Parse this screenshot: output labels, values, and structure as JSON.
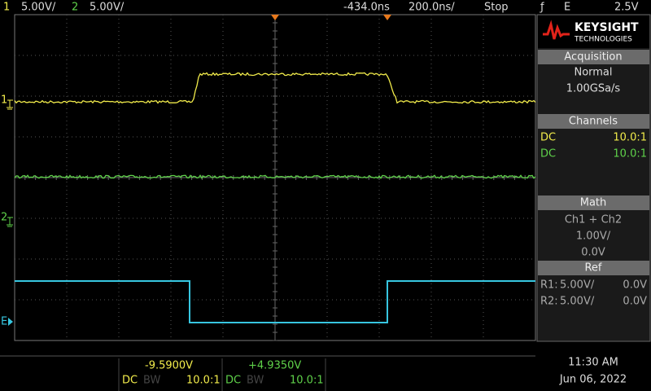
{
  "top_bar": {
    "ch1_label": "1",
    "ch1_scale": "5.00V/",
    "ch2_label": "2",
    "ch2_scale": "5.00V/",
    "delay": "-434.0ns",
    "timebase": "200.0ns/",
    "run_state": "Stop",
    "trigger_slope": "ƒ",
    "trigger_source": "E",
    "trigger_level": "2.5V"
  },
  "markers": {
    "ch1": "1",
    "ch2": "2",
    "ext": "E"
  },
  "right_panel": {
    "logo": {
      "brand": "KEYSIGHT",
      "sub": "TECHNOLOGIES"
    },
    "acquisition": {
      "header": "Acquisition",
      "mode": "Normal",
      "rate": "1.00GSa/s"
    },
    "channels": {
      "header": "Channels",
      "rows": [
        [
          "DC",
          "10.0:1"
        ],
        [
          "DC",
          "10.0:1"
        ]
      ]
    },
    "math": {
      "header": "Math",
      "function": "Ch1 + Ch2",
      "scale": "1.00V/",
      "offset": "0.0V"
    },
    "ref": {
      "header": "Ref",
      "rows": [
        [
          "R1:",
          "5.00V/",
          "0.0V"
        ],
        [
          "R2:",
          "5.00V/",
          "0.0V"
        ]
      ]
    }
  },
  "bottom_bar": {
    "ch1_offset": "-9.5900V",
    "ch2_offset": "+4.9350V",
    "ch1": {
      "coupling": "DC",
      "bw": "BW",
      "probe": "10.0:1"
    },
    "ch2": {
      "coupling": "DC",
      "bw": "BW",
      "probe": "10.0:1"
    },
    "time": "11:30 AM",
    "date": "Jun 06, 2022"
  }
}
